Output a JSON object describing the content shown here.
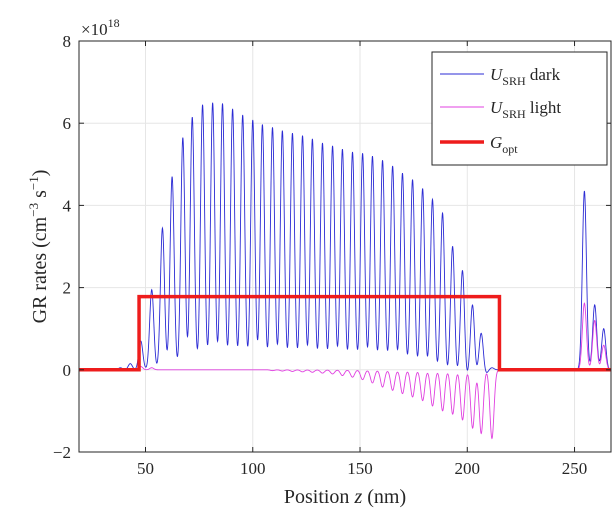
{
  "chart_data": {
    "type": "line",
    "xlabel": {
      "main": "Position ",
      "var": "z",
      "unit": " (nm)"
    },
    "ylabel": {
      "main": "GR rates (cm",
      "sup1": "−3",
      "mid": " s",
      "sup2": "−1",
      "end": ")"
    },
    "exponent": {
      "base": "×10",
      "sup": "18"
    },
    "xlim": [
      19,
      267
    ],
    "ylim": [
      -2,
      8
    ],
    "xticks": [
      50,
      100,
      150,
      200,
      250
    ],
    "yticks": [
      -2,
      0,
      2,
      4,
      6,
      8
    ],
    "ytick_labels": [
      "−2",
      "0",
      "2",
      "4",
      "6",
      "8"
    ],
    "grid": true,
    "legend_position": "top-right",
    "legend": [
      {
        "main": "U",
        "sub": "SRH",
        "tail": " dark",
        "color": "#2b2bd4"
      },
      {
        "main": "U",
        "sub": "SRH",
        "tail": " light",
        "color": "#e040e0"
      },
      {
        "main": "G",
        "sub": "opt",
        "tail": "",
        "color": "#ee1c1c"
      }
    ],
    "series": [
      {
        "id": "dark",
        "color": "#2b2bd4",
        "peaks": [
          [
            38.3,
            0.05
          ],
          [
            42.9,
            0.15
          ],
          [
            47.8,
            0.7
          ],
          [
            52.9,
            1.95
          ],
          [
            57.9,
            3.45
          ],
          [
            62.4,
            4.7
          ],
          [
            67.4,
            5.65
          ],
          [
            71.8,
            6.15
          ],
          [
            76.6,
            6.45
          ],
          [
            81.3,
            6.5
          ],
          [
            85.9,
            6.48
          ],
          [
            90.6,
            6.35
          ],
          [
            95.3,
            6.2
          ],
          [
            100.0,
            6.08
          ],
          [
            104.5,
            5.97
          ],
          [
            109.2,
            5.9
          ],
          [
            113.8,
            5.82
          ],
          [
            118.5,
            5.76
          ],
          [
            123.2,
            5.7
          ],
          [
            127.8,
            5.62
          ],
          [
            132.5,
            5.52
          ],
          [
            137.2,
            5.45
          ],
          [
            141.8,
            5.37
          ],
          [
            146.5,
            5.3
          ],
          [
            151.2,
            5.27
          ],
          [
            155.8,
            5.2
          ],
          [
            160.5,
            5.1
          ],
          [
            165.2,
            4.98
          ],
          [
            169.8,
            4.82
          ],
          [
            174.5,
            4.68
          ],
          [
            179.2,
            4.48
          ],
          [
            183.8,
            4.22
          ],
          [
            188.5,
            3.9
          ],
          [
            193.2,
            3.1
          ],
          [
            197.8,
            2.5
          ],
          [
            202.5,
            1.7
          ],
          [
            206.5,
            0.9
          ],
          [
            211.5,
            0.05
          ],
          [
            254.6,
            4.35
          ],
          [
            259.4,
            1.58
          ],
          [
            263.6,
            1.0
          ]
        ],
        "troughs": [
          [
            166.5,
            -0.05
          ],
          [
            171.2,
            -0.1
          ],
          [
            175.9,
            -0.15
          ],
          [
            180.6,
            -0.2
          ],
          [
            185.3,
            -0.25
          ],
          [
            190.0,
            -0.3
          ],
          [
            194.6,
            -0.3
          ],
          [
            199.3,
            -0.3
          ],
          [
            203.6,
            -0.25
          ],
          [
            208.6,
            -0.1
          ]
        ]
      },
      {
        "id": "light",
        "color": "#e040e0",
        "peaks": [
          [
            47.8,
            0.08
          ],
          [
            52.9,
            0.05
          ],
          [
            254.6,
            1.62
          ],
          [
            259.4,
            1.2
          ],
          [
            263.6,
            0.6
          ]
        ],
        "troughs": [
          [
            109.2,
            -0.02
          ],
          [
            113.8,
            -0.03
          ],
          [
            118.5,
            -0.04
          ],
          [
            123.2,
            -0.05
          ],
          [
            127.8,
            -0.06
          ],
          [
            132.5,
            -0.08
          ],
          [
            137.2,
            -0.1
          ],
          [
            141.8,
            -0.14
          ],
          [
            146.5,
            -0.18
          ],
          [
            151.2,
            -0.24
          ],
          [
            155.8,
            -0.32
          ],
          [
            160.5,
            -0.42
          ],
          [
            165.2,
            -0.5
          ],
          [
            169.8,
            -0.58
          ],
          [
            174.5,
            -0.66
          ],
          [
            179.2,
            -0.75
          ],
          [
            183.8,
            -0.88
          ],
          [
            188.5,
            -1.0
          ],
          [
            193.2,
            -1.08
          ],
          [
            197.8,
            -1.22
          ],
          [
            202.5,
            -1.42
          ],
          [
            206.5,
            -1.55
          ],
          [
            211.5,
            -1.67
          ]
        ]
      },
      {
        "id": "gopt",
        "color": "#ee1c1c",
        "points": [
          [
            19,
            0
          ],
          [
            47,
            0
          ],
          [
            47,
            1.78
          ],
          [
            215,
            1.78
          ],
          [
            215,
            0
          ],
          [
            267,
            0
          ]
        ]
      }
    ]
  }
}
